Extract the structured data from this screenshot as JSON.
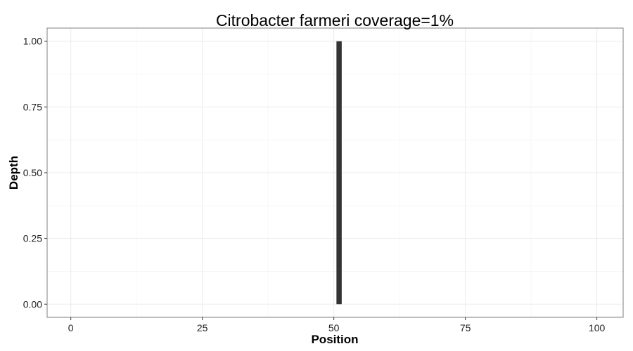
{
  "chart_data": {
    "type": "bar",
    "title": "Citrobacter farmeri coverage=1%",
    "xlabel": "Position",
    "ylabel": "Depth",
    "xlim": [
      -4.5,
      105
    ],
    "ylim": [
      -0.05,
      1.05
    ],
    "x_ticks": [
      0,
      25,
      50,
      75,
      100
    ],
    "x_tick_labels": [
      "0",
      "25",
      "50",
      "75",
      "100"
    ],
    "y_ticks": [
      0,
      0.25,
      0.5,
      0.75,
      1
    ],
    "y_tick_labels": [
      "0.00",
      "0.25",
      "0.50",
      "0.75",
      "1.00"
    ],
    "grid": true,
    "legend": "none",
    "bar_width": 1,
    "points": [
      {
        "x": 51,
        "y": 1.0
      }
    ],
    "colors": {
      "bar": "#333333",
      "grid_major": "#ebebeb",
      "grid_minor": "#f5f5f5",
      "panel_border": "#7f7f7f",
      "background": "#ffffff"
    }
  }
}
